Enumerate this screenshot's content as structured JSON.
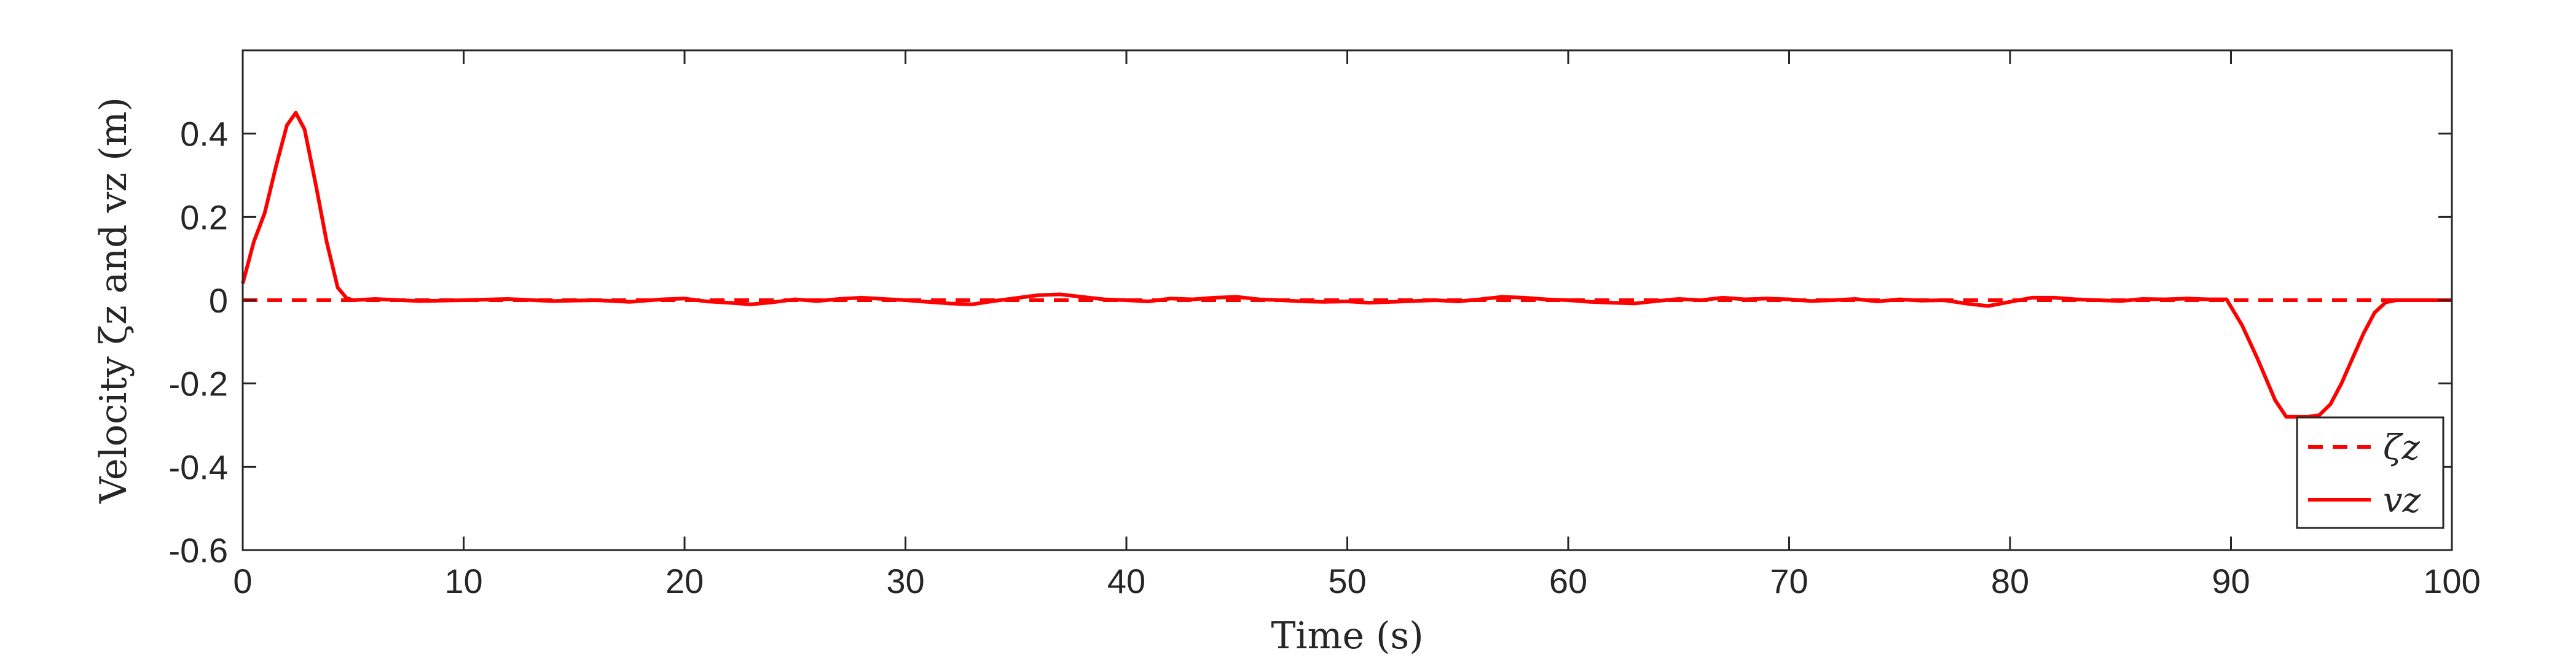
{
  "chart_data": {
    "type": "line",
    "xlabel": "Time (s)",
    "ylabel": "Velocity ζz and vz (m)",
    "xlim": [
      0,
      100
    ],
    "ylim": [
      -0.6,
      0.6
    ],
    "xticks": [
      0,
      10,
      20,
      30,
      40,
      50,
      60,
      70,
      80,
      90,
      100
    ],
    "yticks": [
      -0.6,
      -0.4,
      -0.2,
      0,
      0.2,
      0.4
    ],
    "ytick_labels": [
      "-0.6",
      "-0.4",
      "-0.2",
      "0",
      "0.2",
      "0.4"
    ],
    "grid": false,
    "legend": {
      "placement": "bottom-right"
    },
    "series": [
      {
        "name": "ζz",
        "style": "dashed",
        "color": "#ff0000",
        "x": [
          0,
          100
        ],
        "y": [
          0,
          0
        ]
      },
      {
        "name": "vz",
        "style": "solid",
        "color": "#ff0000",
        "x": [
          0,
          0.5,
          1,
          1.5,
          2,
          2.4,
          2.8,
          3.3,
          3.8,
          4.3,
          4.7,
          5,
          6,
          8,
          10,
          12,
          14,
          16,
          17.5,
          19,
          20,
          21,
          22,
          23,
          24,
          25,
          26,
          27,
          28,
          29,
          30,
          31,
          32,
          33,
          34,
          35,
          36,
          37,
          38,
          39,
          40,
          41,
          42,
          43,
          44,
          45,
          46,
          47,
          48,
          49,
          50,
          51,
          52,
          53,
          54,
          55,
          56,
          57,
          58,
          59,
          60,
          61,
          62,
          63,
          64,
          65,
          66,
          67,
          68,
          69,
          70,
          71,
          72,
          73,
          74,
          75,
          76,
          77,
          78,
          79,
          80,
          81,
          82,
          83,
          84,
          85,
          86,
          87,
          88,
          89,
          89.8,
          90.5,
          91.2,
          92,
          92.5,
          93,
          93.5,
          94,
          94.5,
          95,
          95.5,
          96,
          96.5,
          97,
          97.5,
          98,
          100
        ],
        "y": [
          0.04,
          0.14,
          0.21,
          0.32,
          0.42,
          0.45,
          0.41,
          0.28,
          0.14,
          0.03,
          0.005,
          0,
          0.003,
          -0.002,
          0,
          0.003,
          -0.002,
          0,
          -0.004,
          0.002,
          0.004,
          -0.003,
          -0.006,
          -0.01,
          -0.005,
          0.002,
          -0.002,
          0.003,
          0.006,
          0.003,
          0,
          -0.004,
          -0.008,
          -0.01,
          -0.002,
          0.005,
          0.012,
          0.014,
          0.008,
          0.002,
          0,
          -0.003,
          0.004,
          0.002,
          0.006,
          0.008,
          0.002,
          0,
          -0.003,
          -0.004,
          -0.003,
          -0.006,
          -0.004,
          -0.002,
          0,
          -0.003,
          0.002,
          0.008,
          0.006,
          0.002,
          0,
          -0.004,
          -0.006,
          -0.008,
          -0.002,
          0.003,
          0,
          0.006,
          0.002,
          0.004,
          0.002,
          -0.002,
          0,
          0.003,
          -0.003,
          0.002,
          -0.001,
          0,
          -0.008,
          -0.014,
          -0.004,
          0.006,
          0.006,
          0.002,
          0,
          -0.002,
          0.003,
          0.002,
          0.004,
          0.002,
          0.002,
          -0.06,
          -0.14,
          -0.24,
          -0.28,
          -0.28,
          -0.28,
          -0.276,
          -0.25,
          -0.2,
          -0.14,
          -0.08,
          -0.03,
          -0.005,
          0,
          0,
          0
        ]
      }
    ]
  }
}
